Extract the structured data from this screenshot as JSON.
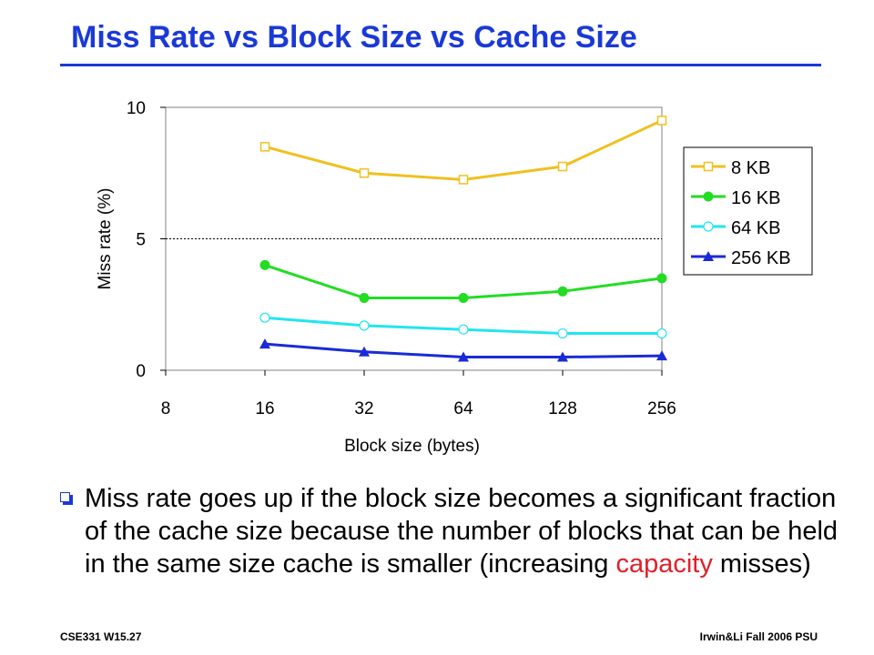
{
  "title": "Miss Rate vs Block Size vs Cache Size",
  "colors": {
    "title": "#1a39d6",
    "highlight": "#e0202a"
  },
  "bullet": {
    "icon": "hollow-square-bullet-icon",
    "text_before": "Miss rate goes up if the block size becomes a significant fraction of the cache size because the number of blocks that can be held in the same size cache is smaller (increasing ",
    "highlight": "capacity",
    "text_after": " misses)"
  },
  "footer": {
    "left": "CSE331  W15.27",
    "right": "Irwin&Li Fall 2006 PSU"
  },
  "chart_data": {
    "type": "line",
    "xlabel": "Block size (bytes)",
    "ylabel": "Miss rate (%)",
    "x_ticks": [
      "8",
      "16",
      "32",
      "64",
      "128",
      "256"
    ],
    "x": [
      "16",
      "32",
      "64",
      "128",
      "256"
    ],
    "y_ticks": [
      "0",
      "5",
      "10"
    ],
    "ylim": [
      0,
      10
    ],
    "x_scale": "log2",
    "grid": "dotted line at 5",
    "legend_position": "right",
    "series": [
      {
        "name": "8 KB",
        "color": "#f0c020",
        "marker": "hollow-square",
        "values": [
          8.5,
          7.5,
          7.25,
          7.75,
          9.5
        ]
      },
      {
        "name": "16 KB",
        "color": "#22dd22",
        "marker": "filled-circle",
        "values": [
          4.0,
          2.75,
          2.75,
          3.0,
          3.5
        ]
      },
      {
        "name": "64 KB",
        "color": "#22e5f0",
        "marker": "hollow-circle",
        "values": [
          2.0,
          1.7,
          1.55,
          1.4,
          1.4
        ]
      },
      {
        "name": "256 KB",
        "color": "#1a2bd6",
        "marker": "filled-triangle",
        "values": [
          1.0,
          0.7,
          0.5,
          0.5,
          0.55
        ]
      }
    ]
  }
}
